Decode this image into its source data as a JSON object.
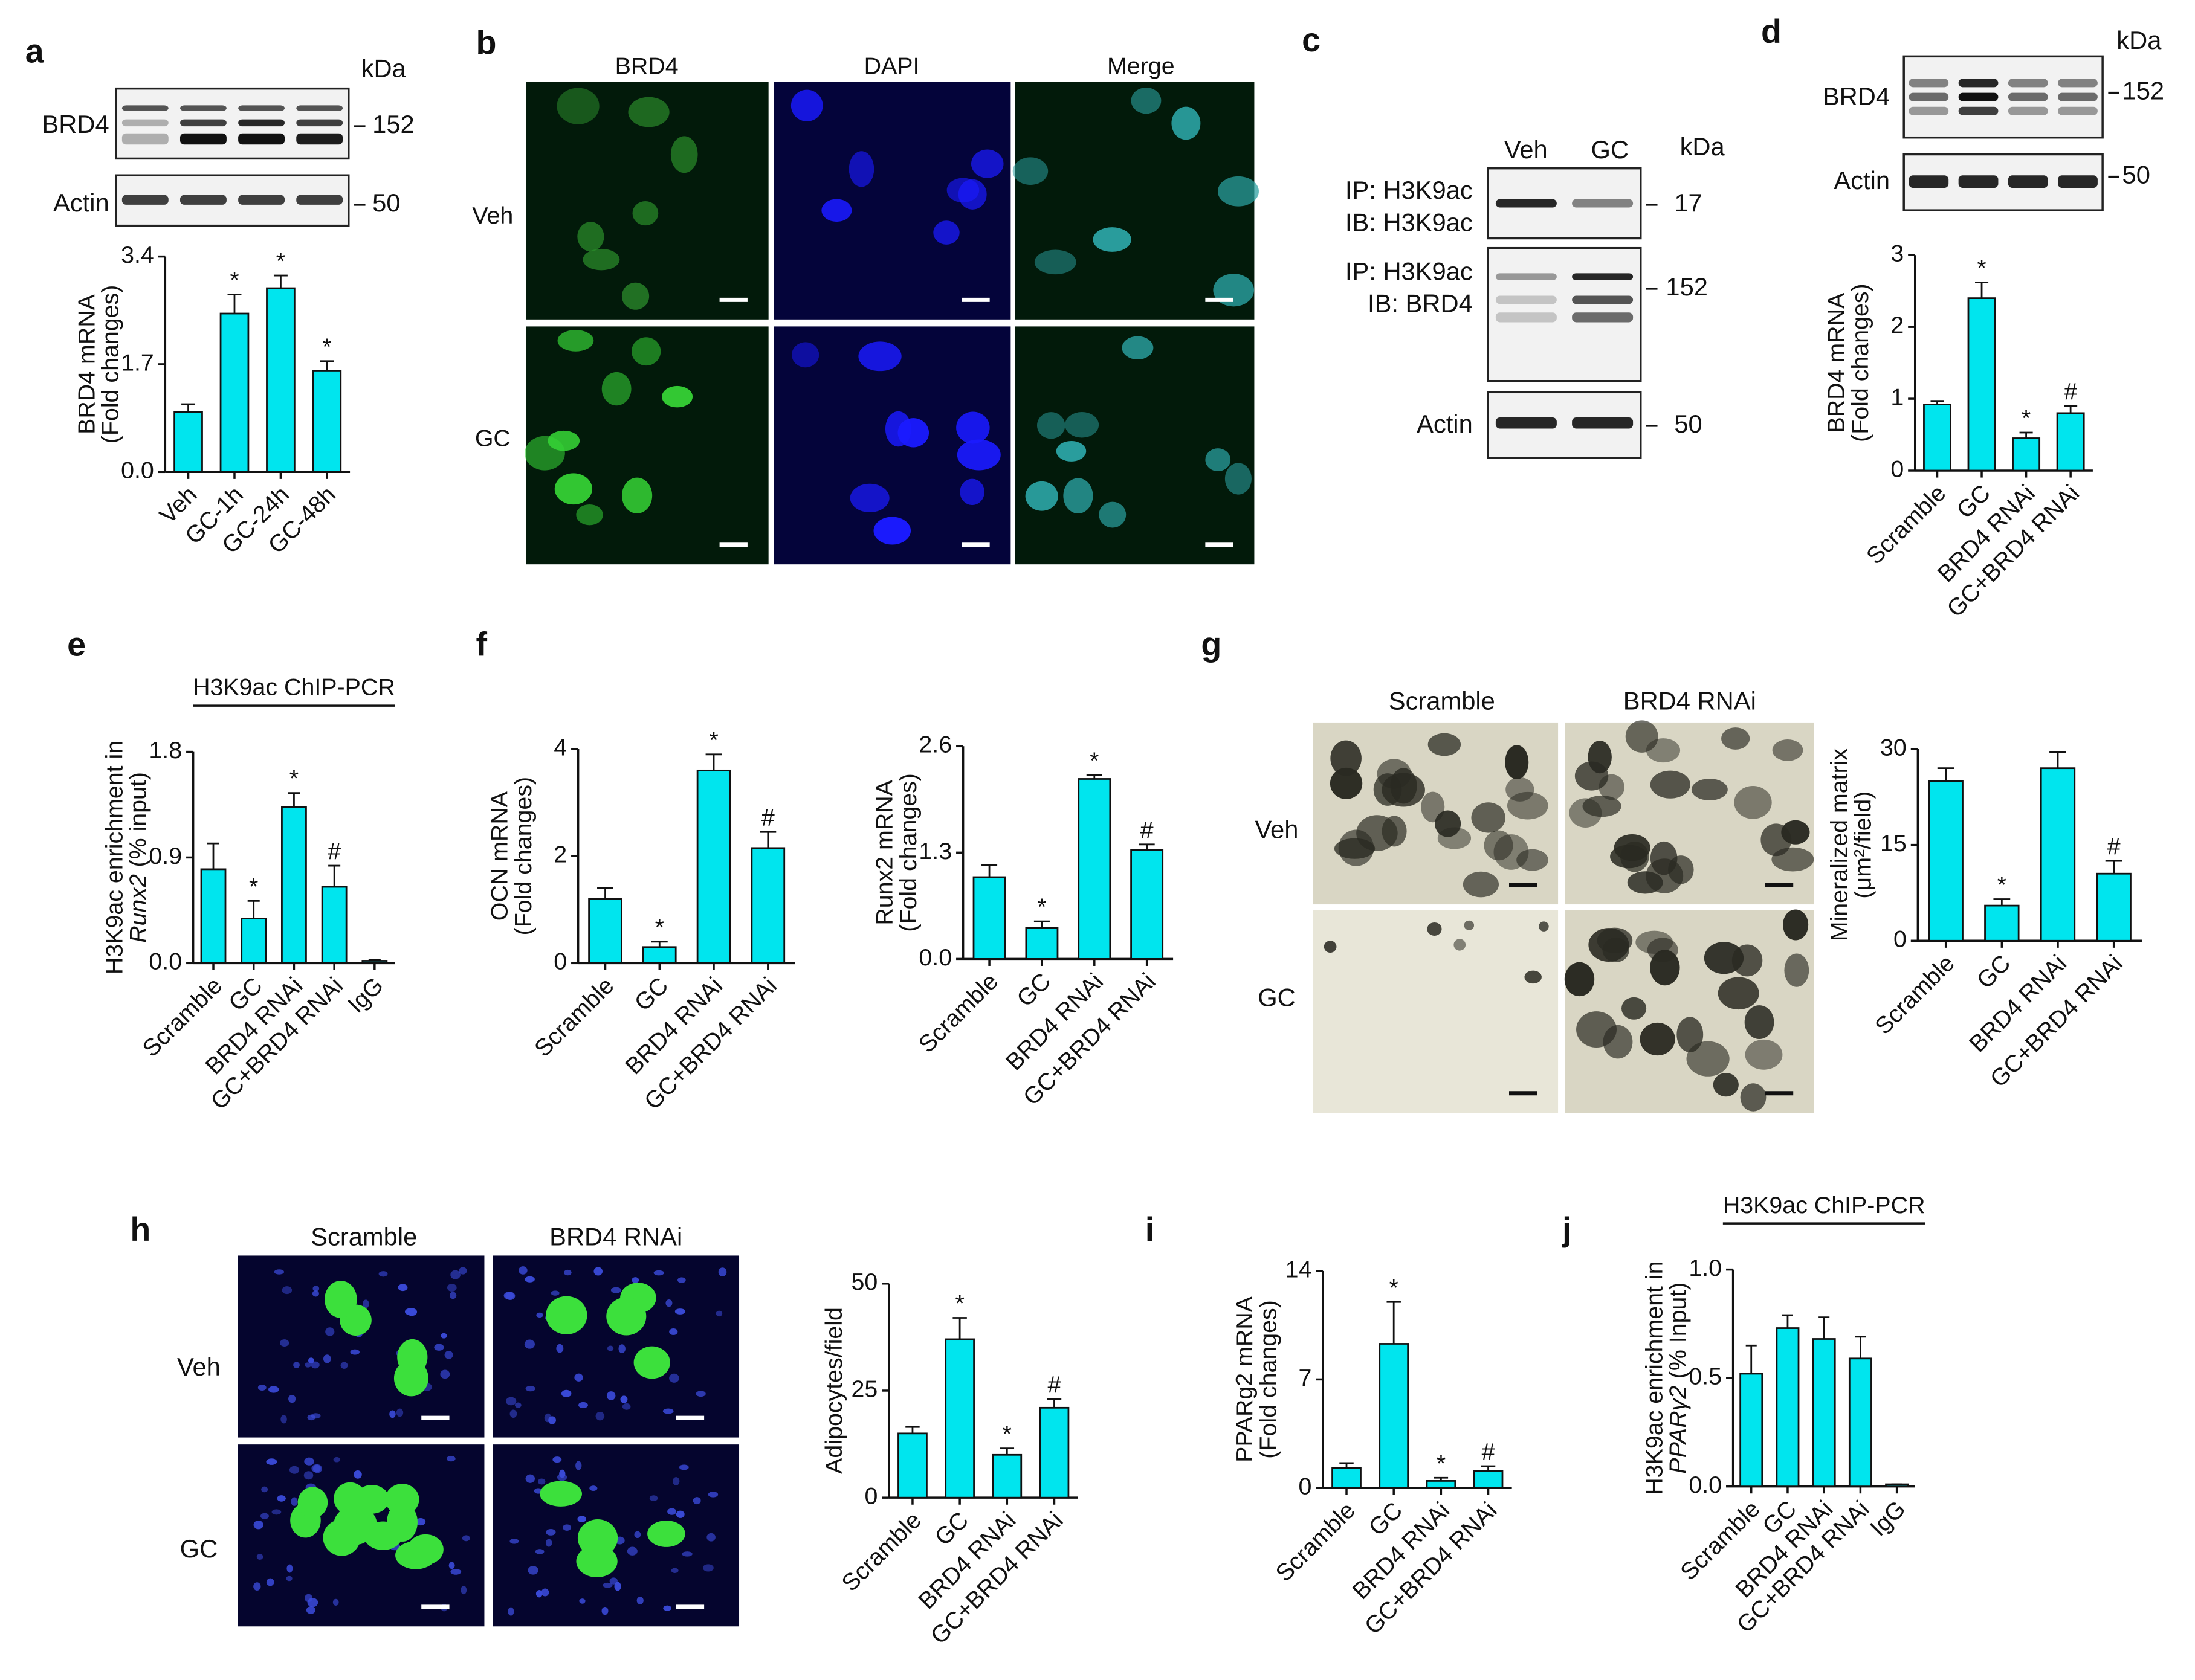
{
  "panel_labels": [
    "a",
    "b",
    "c",
    "d",
    "e",
    "f",
    "g",
    "h",
    "i",
    "j"
  ],
  "blot_a": {
    "kda": "kDa",
    "rows": [
      "BRD4",
      "Actin"
    ],
    "sizes": [
      "152",
      "50"
    ]
  },
  "micro_b": {
    "columns": [
      "BRD4",
      "DAPI",
      "Merge"
    ],
    "rows": [
      "Veh",
      "GC"
    ]
  },
  "blot_c": {
    "columns": [
      "Veh",
      "GC"
    ],
    "kda": "kDa",
    "rows": [
      "IP: H3K9ac",
      "IB: H3K9ac",
      "IP: H3K9ac",
      "IB: BRD4",
      "Actin"
    ],
    "sizes": [
      "17",
      "152",
      "50"
    ]
  },
  "blot_d": {
    "kda": "kDa",
    "rows": [
      "BRD4",
      "Actin"
    ],
    "sizes": [
      "152",
      "50"
    ]
  },
  "micro_g": {
    "columns": [
      "Scramble",
      "BRD4 RNAi"
    ],
    "rows": [
      "Veh",
      "GC"
    ]
  },
  "micro_h": {
    "columns": [
      "Scramble",
      "BRD4 RNAi"
    ],
    "rows": [
      "Veh",
      "GC"
    ]
  },
  "chart_data": [
    {
      "type": "bar",
      "ylabel": [
        "BRD4 mRNA",
        "(Fold changes)"
      ],
      "categories": [
        "Veh",
        "GC-1h",
        "GC-24h",
        "GC-48h"
      ],
      "values": [
        0.95,
        2.5,
        2.9,
        1.6
      ],
      "errors": [
        0.12,
        0.3,
        0.2,
        0.15
      ],
      "annotations": [
        null,
        "*",
        "*",
        "*"
      ],
      "color": "#00e5ee",
      "ylim": [
        0,
        3.4
      ],
      "yticks": [
        {
          "value": 0,
          "label": "0.0"
        },
        1.7,
        3.4
      ]
    },
    {
      "type": "bar",
      "ylabel": [
        "BRD4 mRNA",
        "(Fold changes)"
      ],
      "categories": [
        "Scramble",
        "GC",
        "BRD4 RNAi",
        "GC+BRD4 RNAi"
      ],
      "values": [
        0.92,
        2.4,
        0.45,
        0.8
      ],
      "errors": [
        0.05,
        0.22,
        0.08,
        0.1
      ],
      "annotations": [
        null,
        "*",
        "*",
        "#"
      ],
      "color": "#00e5ee",
      "ylim": [
        0,
        3
      ],
      "yticks": [
        0,
        1,
        2,
        3
      ]
    },
    {
      "type": "bar",
      "title": "H3K9ac ChIP-PCR",
      "ylabel": [
        "H3K9ac enrichment in"
      ],
      "ylabel_gene": "Runx2",
      "ylabel_unit": "(% input)",
      "categories": [
        "Scramble",
        "GC",
        "BRD4 RNAi",
        "GC+BRD4 RNAi",
        "IgG"
      ],
      "values": [
        0.8,
        0.38,
        1.33,
        0.65,
        0.02
      ],
      "errors": [
        0.22,
        0.15,
        0.12,
        0.18,
        0.01
      ],
      "annotations": [
        null,
        "*",
        "*",
        "#",
        null
      ],
      "color": "#00e5ee",
      "ylim": [
        0,
        1.8
      ],
      "yticks": [
        {
          "value": 0,
          "label": "0.0"
        },
        0.9,
        1.8
      ]
    },
    {
      "type": "bar",
      "ylabel": [
        "OCN mRNA",
        "(Fold changes)"
      ],
      "categories": [
        "Scramble",
        "GC",
        "BRD4 RNAi",
        "GC+BRD4 RNAi"
      ],
      "values": [
        1.2,
        0.3,
        3.6,
        2.15
      ],
      "errors": [
        0.2,
        0.1,
        0.3,
        0.3
      ],
      "annotations": [
        null,
        "*",
        "*",
        "#"
      ],
      "color": "#00e5ee",
      "ylim": [
        0,
        4
      ],
      "yticks": [
        0,
        2,
        4
      ]
    },
    {
      "type": "bar",
      "ylabel": [
        "Runx2 mRNA",
        "(Fold changes)"
      ],
      "categories": [
        "Scramble",
        "GC",
        "BRD4 RNAi",
        "GC+BRD4 RNAi"
      ],
      "values": [
        1.0,
        0.38,
        2.2,
        1.33
      ],
      "errors": [
        0.15,
        0.08,
        0.05,
        0.07
      ],
      "annotations": [
        null,
        "*",
        "*",
        "#"
      ],
      "color": "#00e5ee",
      "ylim": [
        0,
        2.6
      ],
      "yticks": [
        {
          "value": 0,
          "label": "0.0"
        },
        1.3,
        2.6
      ]
    },
    {
      "type": "bar",
      "ylabel": [
        "Mineralized matrix",
        "(μm²/field)"
      ],
      "categories": [
        "Scramble",
        "GC",
        "BRD4 RNAi",
        "GC+BRD4 RNAi"
      ],
      "values": [
        25,
        5.5,
        27,
        10.5
      ],
      "errors": [
        2,
        1,
        2.5,
        2
      ],
      "annotations": [
        null,
        "*",
        null,
        "#"
      ],
      "color": "#00e5ee",
      "ylim": [
        0,
        30
      ],
      "yticks": [
        0,
        15,
        30
      ]
    },
    {
      "type": "bar",
      "ylabel": [
        "Adipocytes/field"
      ],
      "categories": [
        "Scramble",
        "GC",
        "BRD4 RNAi",
        "GC+BRD4 RNAi"
      ],
      "values": [
        15,
        37,
        10,
        21
      ],
      "errors": [
        1.5,
        5,
        1.5,
        2
      ],
      "annotations": [
        null,
        "*",
        "*",
        "#"
      ],
      "color": "#00e5ee",
      "ylim": [
        0,
        50
      ],
      "yticks": [
        0,
        25,
        50
      ]
    },
    {
      "type": "bar",
      "ylabel": [
        "PPARg2 mRNA",
        "(Fold changes)"
      ],
      "categories": [
        "Scramble",
        "GC",
        "BRD4 RNAi",
        "GC+BRD4 RNAi"
      ],
      "values": [
        1.3,
        9.3,
        0.45,
        1.1
      ],
      "errors": [
        0.3,
        2.7,
        0.2,
        0.3
      ],
      "annotations": [
        null,
        "*",
        "*",
        "#"
      ],
      "color": "#00e5ee",
      "ylim": [
        0,
        14
      ],
      "yticks": [
        0,
        7,
        14
      ]
    },
    {
      "type": "bar",
      "title": "H3K9ac ChIP-PCR",
      "ylabel": [
        "H3K9ac enrichment in"
      ],
      "ylabel_gene": "PPARγ2",
      "ylabel_unit": "(% Input)",
      "categories": [
        "Scramble",
        "GC",
        "BRD4 RNAi",
        "GC+BRD4 RNAi",
        "IgG"
      ],
      "values": [
        0.52,
        0.73,
        0.68,
        0.59,
        0.01
      ],
      "errors": [
        0.13,
        0.06,
        0.1,
        0.1,
        0
      ],
      "annotations": [
        null,
        null,
        null,
        null,
        null
      ],
      "color": "#00e5ee",
      "ylim": [
        0,
        1.0
      ],
      "yticks": [
        {
          "value": 0,
          "label": "0.0"
        },
        0.5,
        {
          "value": 1,
          "label": "1.0"
        }
      ]
    }
  ]
}
